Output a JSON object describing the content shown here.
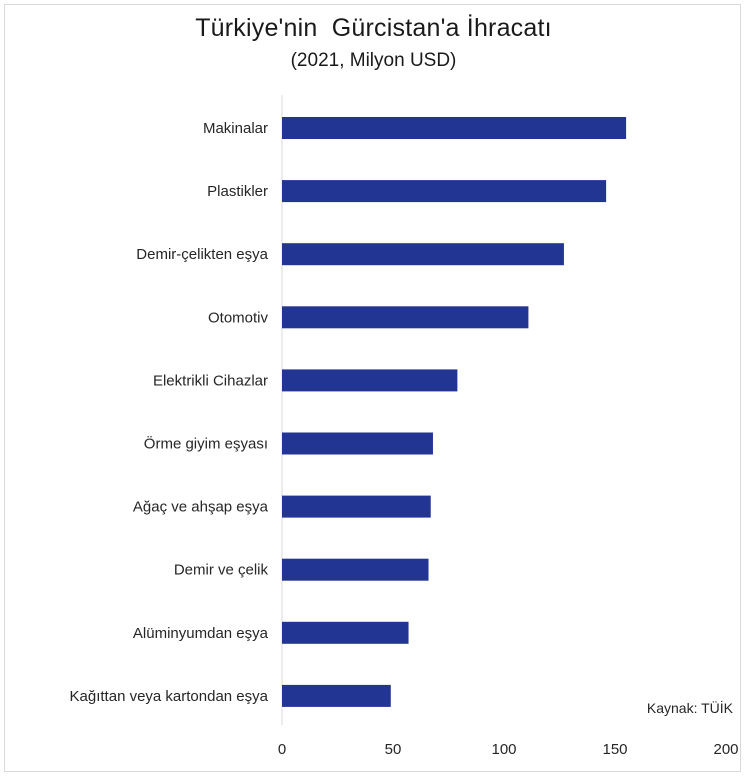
{
  "chart_data": {
    "type": "bar",
    "orientation": "horizontal",
    "title": "Türkiye'nin  Gürcistan'a İhracatı",
    "subtitle": "(2021, Milyon USD)",
    "categories": [
      "Makinalar",
      "Plastikler",
      "Demir-çelikten eşya",
      "Otomotiv",
      "Elektrikli Cihazlar",
      "Örme giyim eşyası",
      "Ağaç ve ahşap eşya",
      "Demir ve çelik",
      "Alüminyumdan eşya",
      "Kağıttan veya kartondan eşya"
    ],
    "values": [
      155,
      146,
      127,
      111,
      79,
      68,
      67,
      66,
      57,
      49
    ],
    "xlim": [
      0,
      200
    ],
    "xticks": [
      "0",
      "50",
      "100",
      "150",
      "200"
    ],
    "grid": false,
    "bar_color": "#233593",
    "source": "Kaynak: TÜİK"
  }
}
